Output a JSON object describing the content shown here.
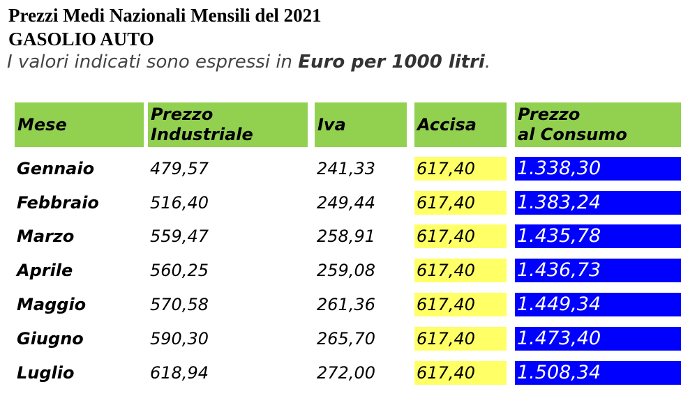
{
  "heading": {
    "title": "Prezzi Medi Nazionali Mensili del 2021",
    "subtitle": "GASOLIO AUTO",
    "note_prefix": "I valori indicati sono espressi in ",
    "note_bold": "Euro per 1000 litri",
    "note_suffix": "."
  },
  "table": {
    "headers": {
      "mese": "Mese",
      "industriale_line1": "Prezzo",
      "industriale_line2": "Industriale",
      "iva": "Iva",
      "accisa": "Accisa",
      "consumo_line1": "Prezzo",
      "consumo_line2": "al Consumo"
    },
    "rows": [
      {
        "mese": "Gennaio",
        "industriale": "479,57",
        "iva": "241,33",
        "accisa": "617,40",
        "consumo": "1.338,30"
      },
      {
        "mese": "Febbraio",
        "industriale": "516,40",
        "iva": "249,44",
        "accisa": "617,40",
        "consumo": "1.383,24"
      },
      {
        "mese": "Marzo",
        "industriale": "559,47",
        "iva": "258,91",
        "accisa": "617,40",
        "consumo": "1.435,78"
      },
      {
        "mese": "Aprile",
        "industriale": "560,25",
        "iva": "259,08",
        "accisa": "617,40",
        "consumo": "1.436,73"
      },
      {
        "mese": "Maggio",
        "industriale": "570,58",
        "iva": "261,36",
        "accisa": "617,40",
        "consumo": "1.449,34"
      },
      {
        "mese": "Giugno",
        "industriale": "590,30",
        "iva": "265,70",
        "accisa": "617,40",
        "consumo": "1.473,40"
      },
      {
        "mese": "Luglio",
        "industriale": "618,94",
        "iva": "272,00",
        "accisa": "617,40",
        "consumo": "1.508,34"
      }
    ]
  },
  "colors": {
    "header_bg": "#92d050",
    "accisa_bg": "#ffff66",
    "consumo_bg": "#0000ff",
    "consumo_text": "#ffffff"
  }
}
